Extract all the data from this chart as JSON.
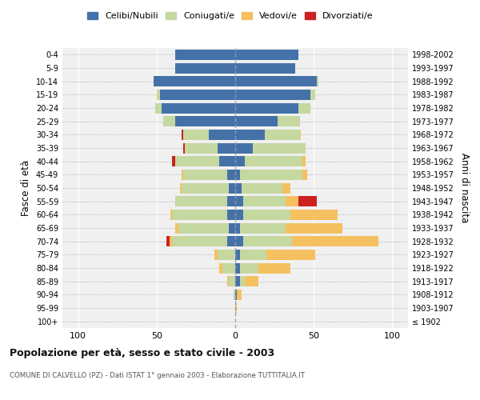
{
  "age_groups": [
    "100+",
    "95-99",
    "90-94",
    "85-89",
    "80-84",
    "75-79",
    "70-74",
    "65-69",
    "60-64",
    "55-59",
    "50-54",
    "45-49",
    "40-44",
    "35-39",
    "30-34",
    "25-29",
    "20-24",
    "15-19",
    "10-14",
    "5-9",
    "0-4"
  ],
  "birth_years": [
    "≤ 1902",
    "1903-1907",
    "1908-1912",
    "1913-1917",
    "1918-1922",
    "1923-1927",
    "1928-1932",
    "1933-1937",
    "1938-1942",
    "1943-1947",
    "1948-1952",
    "1953-1957",
    "1958-1962",
    "1963-1967",
    "1968-1972",
    "1973-1977",
    "1978-1982",
    "1983-1987",
    "1988-1992",
    "1993-1997",
    "1998-2002"
  ],
  "male_celibi": [
    0,
    0,
    0,
    0,
    0,
    0,
    5,
    4,
    5,
    5,
    4,
    5,
    10,
    11,
    17,
    38,
    47,
    48,
    52,
    38,
    38
  ],
  "male_coniugati": [
    0,
    0,
    1,
    4,
    8,
    11,
    35,
    32,
    35,
    33,
    30,
    28,
    28,
    21,
    16,
    8,
    4,
    2,
    0,
    0,
    0
  ],
  "male_vedovi": [
    0,
    0,
    0,
    1,
    2,
    2,
    2,
    2,
    1,
    0,
    1,
    1,
    0,
    0,
    0,
    0,
    0,
    0,
    0,
    0,
    0
  ],
  "male_divorziati": [
    0,
    0,
    0,
    0,
    0,
    0,
    2,
    0,
    0,
    0,
    0,
    0,
    2,
    1,
    1,
    0,
    0,
    0,
    0,
    0,
    0
  ],
  "female_celibi": [
    0,
    0,
    1,
    3,
    3,
    3,
    5,
    3,
    5,
    5,
    4,
    3,
    6,
    11,
    19,
    27,
    40,
    48,
    52,
    38,
    40
  ],
  "female_coniugati": [
    0,
    0,
    0,
    3,
    12,
    17,
    31,
    29,
    30,
    27,
    26,
    40,
    37,
    34,
    22,
    14,
    8,
    3,
    1,
    0,
    0
  ],
  "female_vedovi": [
    0,
    1,
    3,
    9,
    20,
    31,
    55,
    36,
    30,
    8,
    5,
    3,
    2,
    0,
    1,
    0,
    0,
    0,
    0,
    0,
    0
  ],
  "female_divorziati": [
    0,
    0,
    0,
    0,
    0,
    0,
    0,
    0,
    0,
    12,
    0,
    0,
    0,
    0,
    0,
    0,
    0,
    0,
    0,
    0,
    0
  ],
  "colors": {
    "celibi": "#4472a8",
    "coniugati": "#c5d8a0",
    "vedovi": "#f5c060",
    "divorziati": "#cc2222"
  },
  "xlim": 110,
  "title": "Popolazione per età, sesso e stato civile - 2003",
  "subtitle": "COMUNE DI CALVELLO (PZ) - Dati ISTAT 1° gennaio 2003 - Elaborazione TUTTITALIA.IT",
  "ylabel_left": "Fasce di età",
  "ylabel_right": "Anni di nascita",
  "legend_labels": [
    "Celibi/Nubili",
    "Coniugati/e",
    "Vedovi/e",
    "Divorziati/e"
  ],
  "background_color": "#ffffff",
  "plot_bg_color": "#f0f0f0"
}
